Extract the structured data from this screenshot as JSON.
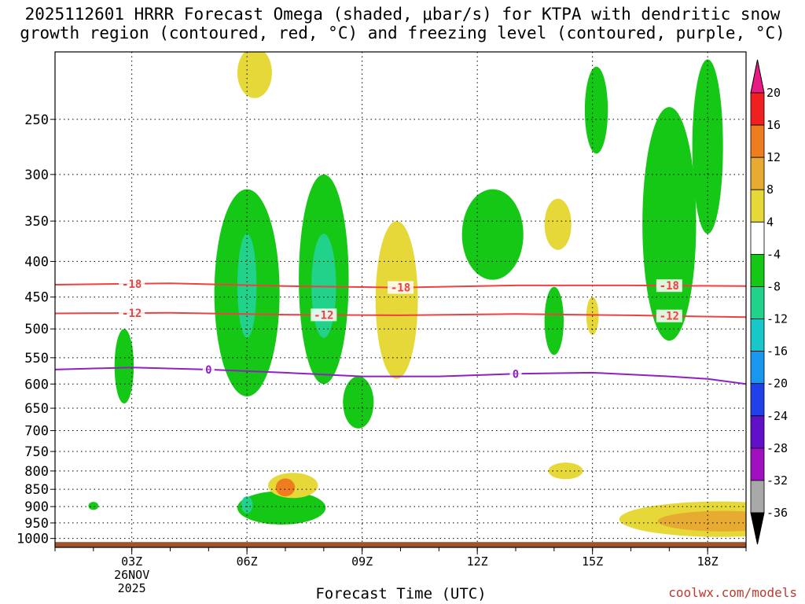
{
  "chart_data": {
    "type": "heatmap",
    "title_line1": "2025112601 HRRR Forecast Omega (shaded, μbar/s) for KTPA with dendritic snow",
    "title_line2": "growth region (contoured, red, °C) and freezing level (contoured, purple, °C)",
    "xlabel": "Forecast Time (UTC)",
    "date_label": [
      "26NOV",
      "2025"
    ],
    "credit": "coolwx.com/models",
    "x_range_hours": [
      1,
      19
    ],
    "x_ticks": [
      {
        "hour": 3,
        "label": "03Z"
      },
      {
        "hour": 6,
        "label": "06Z"
      },
      {
        "hour": 9,
        "label": "09Z"
      },
      {
        "hour": 12,
        "label": "12Z"
      },
      {
        "hour": 15,
        "label": "15Z"
      },
      {
        "hour": 18,
        "label": "18Z"
      }
    ],
    "y_range_hpa": [
      1030,
      200
    ],
    "y_ticks": [
      250,
      300,
      350,
      400,
      450,
      500,
      550,
      600,
      650,
      700,
      750,
      800,
      850,
      900,
      950,
      1000
    ],
    "colorbar": {
      "labels": [
        "20",
        "16",
        "12",
        "8",
        "4",
        "-4",
        "-8",
        "-12",
        "-16",
        "-20",
        "-24",
        "-28",
        "-32",
        "-36"
      ],
      "colors": [
        "#f02020",
        "#ee7d20",
        "#e6ab30",
        "#e6d838",
        "#ffffff",
        "#15c815",
        "#20d28a",
        "#18c8c8",
        "#1896f0",
        "#2040e8",
        "#6010c8",
        "#a010c0",
        "#a8a8a8"
      ],
      "top_color": "#e81a84",
      "bottom_color": "#000000"
    },
    "contours": [
      {
        "name": "dgz-minus18",
        "label": "-18",
        "color": "#f04040",
        "points": [
          [
            1,
            432
          ],
          [
            4,
            430
          ],
          [
            7,
            434
          ],
          [
            10,
            436
          ],
          [
            13,
            433
          ],
          [
            16,
            433
          ],
          [
            19,
            434
          ]
        ],
        "label_hours": [
          3,
          10,
          17
        ]
      },
      {
        "name": "dgz-minus12",
        "label": "-12",
        "color": "#f04040",
        "points": [
          [
            1,
            475
          ],
          [
            4,
            474
          ],
          [
            7,
            477
          ],
          [
            10,
            478
          ],
          [
            13,
            476
          ],
          [
            16,
            478
          ],
          [
            19,
            481
          ]
        ],
        "label_hours": [
          3,
          8,
          17
        ]
      },
      {
        "name": "freezing-level-0",
        "label": "0",
        "color": "#9020c0",
        "points": [
          [
            1,
            572
          ],
          [
            3,
            568
          ],
          [
            5,
            572
          ],
          [
            7,
            578
          ],
          [
            9,
            585
          ],
          [
            11,
            585
          ],
          [
            13,
            580
          ],
          [
            15,
            578
          ],
          [
            17,
            585
          ],
          [
            18,
            590
          ],
          [
            19,
            600
          ]
        ],
        "label_hours": [
          5,
          13
        ]
      }
    ],
    "features": [
      {
        "name": "upward-motion-0252Z-500hPa",
        "color": "#15c815",
        "cx": 2.8,
        "cy": 570,
        "rx": 0.25,
        "ry": 70
      },
      {
        "name": "upward-motion-0600Z-500hPa",
        "color": "#15c815",
        "cx": 6.0,
        "cy": 470,
        "rx": 0.85,
        "ry": 155
      },
      {
        "name": "upward-motion-0600Z-core",
        "color": "#20d28a",
        "cx": 6.0,
        "cy": 440,
        "rx": 0.25,
        "ry": 75
      },
      {
        "name": "upward-motion-0800Z-500hPa",
        "color": "#15c815",
        "cx": 8.0,
        "cy": 450,
        "rx": 0.65,
        "ry": 150
      },
      {
        "name": "upward-motion-0800Z-core",
        "color": "#20d28a",
        "cx": 8.0,
        "cy": 440,
        "rx": 0.32,
        "ry": 75
      },
      {
        "name": "upward-motion-0830Z-650hPa",
        "color": "#15c815",
        "cx": 8.9,
        "cy": 640,
        "rx": 0.4,
        "ry": 55
      },
      {
        "name": "downward-motion-1000Z-470hPa",
        "color": "#e6d838",
        "cx": 9.9,
        "cy": 470,
        "rx": 0.55,
        "ry": 120
      },
      {
        "name": "upward-motion-1230Z-360hPa",
        "color": "#15c815",
        "cx": 12.4,
        "cy": 370,
        "rx": 0.8,
        "ry": 55
      },
      {
        "name": "downward-motion-1400Z-350hPa",
        "color": "#e6d838",
        "cx": 14.1,
        "cy": 355,
        "rx": 0.35,
        "ry": 30
      },
      {
        "name": "upward-motion-1400Z-480hPa",
        "color": "#15c815",
        "cx": 14.0,
        "cy": 490,
        "rx": 0.25,
        "ry": 55
      },
      {
        "name": "downward-motion-1500Z-480hPa",
        "color": "#e6d838",
        "cx": 15.0,
        "cy": 480,
        "rx": 0.16,
        "ry": 30
      },
      {
        "name": "upward-motion-1500Z-260hPa",
        "color": "#15c815",
        "cx": 15.1,
        "cy": 245,
        "rx": 0.3,
        "ry": 35
      },
      {
        "name": "downward-motion-0630Z-230hPa",
        "color": "#e6d838",
        "cx": 6.2,
        "cy": 215,
        "rx": 0.45,
        "ry": 18
      },
      {
        "name": "upward-motion-1700Z-380hPa",
        "color": "#15c815",
        "cx": 17.0,
        "cy": 380,
        "rx": 0.7,
        "ry": 140
      },
      {
        "name": "upward-motion-1800Z-300hPa",
        "color": "#15c815",
        "cx": 18.0,
        "cy": 285,
        "rx": 0.4,
        "ry": 80
      },
      {
        "name": "downward-motion-1400Z-790hPa",
        "color": "#e6d838",
        "cx": 14.3,
        "cy": 800,
        "rx": 0.45,
        "ry": 22
      },
      {
        "name": "upward-motion-0700Z-900hPa",
        "color": "#15c815",
        "cx": 6.9,
        "cy": 905,
        "rx": 1.15,
        "ry": 50
      },
      {
        "name": "upward-motion-0600Z-core-low",
        "color": "#20d28a",
        "cx": 6.0,
        "cy": 895,
        "rx": 0.15,
        "ry": 25
      },
      {
        "name": "downward-motion-0700Z-840hPa",
        "color": "#e6d838",
        "cx": 7.2,
        "cy": 840,
        "rx": 0.65,
        "ry": 35
      },
      {
        "name": "downward-motion-0700Z-core",
        "color": "#ee7d20",
        "cx": 7.0,
        "cy": 845,
        "rx": 0.25,
        "ry": 25
      },
      {
        "name": "upward-motion-0100Z-900hPa",
        "color": "#15c815",
        "cx": 2.0,
        "cy": 898,
        "rx": 0.13,
        "ry": 12
      },
      {
        "name": "downward-motion-1830Z-940hPa",
        "color": "#e6d838",
        "cx": 18.3,
        "cy": 940,
        "rx": 2.6,
        "ry": 55
      },
      {
        "name": "downward-motion-1830Z-core",
        "color": "#e6ab30",
        "cx": 18.4,
        "cy": 945,
        "rx": 1.7,
        "ry": 32
      }
    ],
    "terrain_color": "#a0522d"
  }
}
